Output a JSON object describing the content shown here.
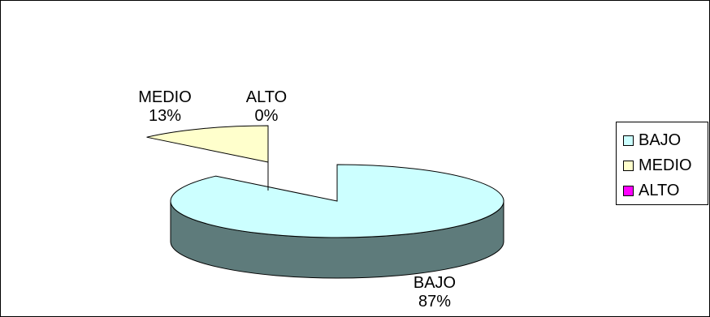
{
  "chart_data": {
    "type": "pie",
    "style": "3d-exploded",
    "categories": [
      "BAJO",
      "MEDIO",
      "ALTO"
    ],
    "values": [
      87,
      13,
      0
    ],
    "unit": "%",
    "colors": [
      "#CCFFFF",
      "#FFFFCC",
      "#FF00FF"
    ],
    "side_colors": [
      "#5E7B7B",
      "#7E7B5E",
      "#7B007B"
    ],
    "data_labels": [
      {
        "category": "BAJO",
        "percent": "87%"
      },
      {
        "category": "MEDIO",
        "percent": "13%"
      },
      {
        "category": "ALTO",
        "percent": "0%"
      }
    ],
    "legend_position": "right"
  }
}
